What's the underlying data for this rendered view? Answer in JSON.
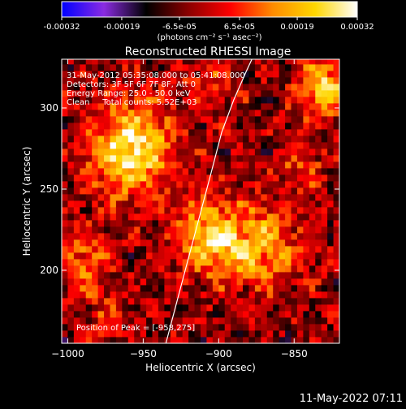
{
  "chart_data": {
    "type": "heatmap",
    "title": "Reconstructed RHESSI Image",
    "colorbar": {
      "ticks": [
        "-0.00032",
        "-0.00019",
        "-6.5e-05",
        "6.5e-05",
        "0.00019",
        "0.00032"
      ],
      "tick_values": [
        -0.00032,
        -0.00019,
        -6.5e-05,
        6.5e-05,
        0.00019,
        0.00032
      ],
      "range": [
        -0.00032,
        0.00032
      ],
      "unit_label": "(photons cm⁻² s⁻¹ asec⁻²)",
      "colormap": [
        "#0000ff",
        "#8a2be2",
        "#000000",
        "#8b0000",
        "#ff0000",
        "#ff8c00",
        "#ffd700",
        "#ffffff"
      ]
    },
    "xlabel": "Heliocentric X (arcsec)",
    "ylabel": "Heliocentric Y (arcsec)",
    "x_ticks": [
      "-1000",
      "-950",
      "-900",
      "-850"
    ],
    "x_tick_values": [
      -1000,
      -950,
      -900,
      -850
    ],
    "y_ticks": [
      "200",
      "250",
      "300"
    ],
    "y_tick_values": [
      200,
      250,
      300
    ],
    "xlim": [
      -1004,
      -820
    ],
    "ylim": [
      155,
      330
    ],
    "annotations": [
      "31-May-2012 05:35:08.000 to 05:41:08.000",
      "Detectors: 3F 5F 6F 7F 8F, Att 0",
      "Energy Range: 25.0 - 50.0 keV",
      "Clean     Total counts: 5.52E+03"
    ],
    "peak_label": "Position of Peak = [-958,275]",
    "peak": [
      -958,
      275
    ],
    "limb_curve": {
      "x": [
        -935,
        -925,
        -915,
        -905,
        -898,
        -890,
        -882,
        -878
      ],
      "y": [
        155,
        190,
        225,
        260,
        285,
        305,
        322,
        330
      ]
    },
    "sources": [
      {
        "x": -958,
        "y": 275,
        "amplitude": 0.00032,
        "sigma": 20
      },
      {
        "x": -905,
        "y": 220,
        "amplitude": 0.00026,
        "sigma": 16
      },
      {
        "x": -870,
        "y": 215,
        "amplitude": 0.0002,
        "sigma": 18
      },
      {
        "x": -830,
        "y": 312,
        "amplitude": 0.00028,
        "sigma": 12
      },
      {
        "x": -990,
        "y": 205,
        "amplitude": 0.00015,
        "sigma": 14
      },
      {
        "x": -905,
        "y": 315,
        "amplitude": 0.0001,
        "sigma": 12
      },
      {
        "x": -845,
        "y": 265,
        "amplitude": 0.00012,
        "sigma": 10
      },
      {
        "x": -975,
        "y": 170,
        "amplitude": 8e-05,
        "sigma": 10
      }
    ]
  },
  "footer": {
    "timestamp": "11-May-2022 07:11"
  }
}
